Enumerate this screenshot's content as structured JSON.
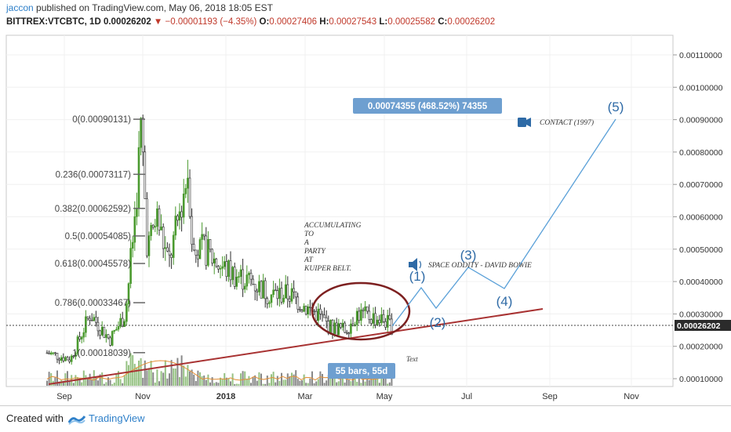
{
  "header": {
    "user": "jaccon",
    "published": " published on TradingView.com, May 06, 2018 18:05 EST",
    "symbol": "BITTREX:VTCBTC, 1D",
    "last": "0.00026202",
    "arrow": "▼",
    "change": "−0.00001193 (−4.35%)",
    "o_label": "O:",
    "o_val": "0.00027406",
    "h_label": "H:",
    "h_val": "0.00027543",
    "l_label": "L:",
    "l_val": "0.00025582",
    "c_label": "C:",
    "c_val": "0.00026202"
  },
  "footer": {
    "created": "Created with",
    "brand": "TradingView"
  },
  "chart_data": {
    "type": "candlestick",
    "price_axis": {
      "ticks": [
        0.0011,
        0.001,
        0.0009,
        0.0008,
        0.0007,
        0.0006,
        0.0005,
        0.0004,
        0.0003,
        0.0002,
        0.0001
      ],
      "labels": [
        "0.00110000",
        "0.00100000",
        "0.00090000",
        "0.00080000",
        "0.00070000",
        "0.00060000",
        "0.00050000",
        "0.00040000",
        "0.00030000",
        "0.00020000",
        "0.00010000"
      ],
      "current": "0.00026202"
    },
    "time_axis": [
      "Sep",
      "Nov",
      "2018",
      "Mar",
      "May",
      "Jul",
      "Sep",
      "Nov"
    ],
    "fib_levels": [
      {
        "label": "0(0.00090131)",
        "price": 0.00090131
      },
      {
        "label": "0.236(0.00073117)",
        "price": 0.00073117
      },
      {
        "label": "0.382(0.00062592)",
        "price": 0.00062592
      },
      {
        "label": "0.5(0.00054085)",
        "price": 0.00054085
      },
      {
        "label": "0.618(0.00045578)",
        "price": 0.00045578
      },
      {
        "label": "0.786(0.00033467)",
        "price": 0.00033467
      },
      {
        "label": "1(0.00018039)",
        "price": 0.00018039
      }
    ],
    "annotations": {
      "accumulating": [
        "ACCUMULATING",
        "TO",
        "A",
        "PARTY",
        "AT",
        "KUIPER BELT."
      ],
      "song": "SPACE ODDITY - DAVID BOWIE",
      "movie": "CONTACT (1997)",
      "measure": "0.00074355 (468.52%) 74355",
      "bars": "55 bars, 55d",
      "text_label": "Text",
      "waves": [
        "(1)",
        "(2)",
        "(3)",
        "(4)",
        "(5)"
      ]
    },
    "colors": {
      "up": "#4a9a2e",
      "down": "#2b2b2b",
      "trend": "#a83232",
      "projection": "#5aa0d8",
      "measure": "#6e9fd0",
      "price_tag": "#2b2b2b"
    }
  }
}
